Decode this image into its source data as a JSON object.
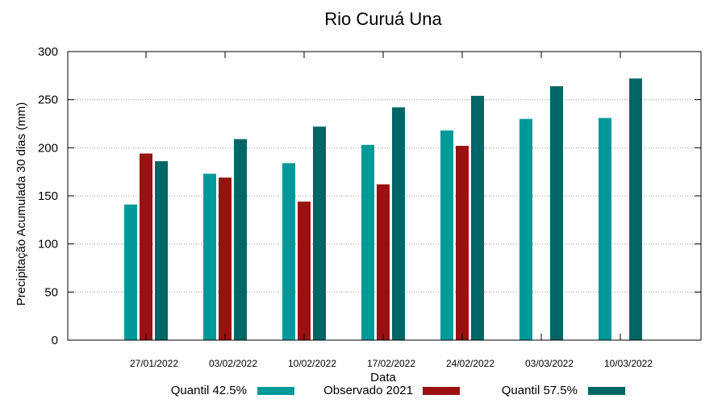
{
  "chart_data": {
    "type": "bar",
    "title": "Rio Curuá Una",
    "xlabel": "Data",
    "ylabel": "Precipitação Acumulada 30 dias (mm)",
    "ylim": [
      0,
      300
    ],
    "yticks": [
      0,
      50,
      100,
      150,
      200,
      250,
      300
    ],
    "grid": true,
    "legend_position": "bottom",
    "categories": [
      "27/01/2022",
      "03/02/2022",
      "10/02/2022",
      "17/02/2022",
      "24/02/2022",
      "03/03/2022",
      "10/03/2022"
    ],
    "series": [
      {
        "name": "Quantil 42.5%",
        "color": "#009999",
        "values": [
          141,
          173,
          184,
          203,
          218,
          230,
          231
        ]
      },
      {
        "name": "Observado 2021",
        "color": "#991111",
        "values": [
          194,
          169,
          144,
          162,
          202,
          null,
          null
        ]
      },
      {
        "name": "Quantil 57.5%",
        "color": "#006666",
        "values": [
          186,
          209,
          222,
          242,
          254,
          264,
          272
        ]
      }
    ]
  }
}
